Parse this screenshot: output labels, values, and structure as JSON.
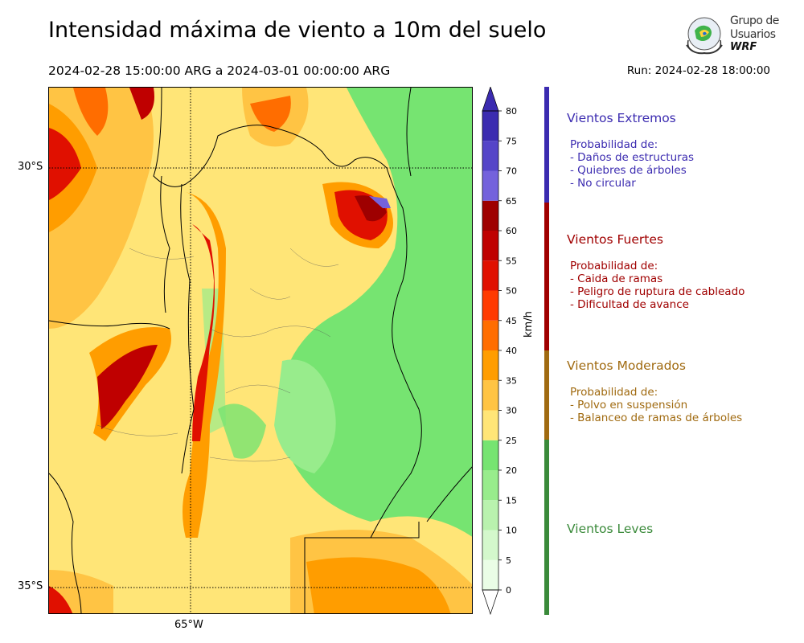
{
  "title": "Intensidad máxima de viento a 10m del suelo",
  "period": "2024-02-28 15:00:00 ARG  a  2024-03-01 00:00:00 ARG",
  "run": "Run: 2024-02-28 18:00:00",
  "logo": {
    "line1": "Grupo de",
    "line2": "Usuarios",
    "line3": "WRF"
  },
  "map": {
    "lat_labels": [
      "30°S",
      "35°S"
    ],
    "lon_labels": [
      "65°W"
    ]
  },
  "colorbar": {
    "unit": "km/h",
    "ticks": [
      "0",
      "5",
      "10",
      "15",
      "20",
      "25",
      "30",
      "35",
      "40",
      "45",
      "50",
      "55",
      "60",
      "65",
      "70",
      "75",
      "80"
    ],
    "colors": [
      "#eafde6",
      "#d4f8cc",
      "#b9f2ae",
      "#98ec8c",
      "#76e471",
      "#ffe577",
      "#ffc444",
      "#ff9d00",
      "#ff6d00",
      "#ff3a00",
      "#e01000",
      "#bf0000",
      "#9e0000",
      "#7462dc",
      "#5545c8",
      "#3b2bb0"
    ]
  },
  "categories": [
    {
      "title": "Vientos Extremos",
      "color": "#3b2bb0",
      "desc_color": "#3b2bb0",
      "lines": [
        "Probabilidad de:",
        "- Daños de estructuras",
        "- Quiebres de árboles",
        "- No circular"
      ]
    },
    {
      "title": "Vientos Fuertes",
      "color": "#a00000",
      "desc_color": "#a00000",
      "lines": [
        "Probabilidad de:",
        "- Caida de ramas",
        "- Peligro de ruptura de cableado",
        "- Dificultad de avance"
      ]
    },
    {
      "title": "Vientos Moderados",
      "color": "#a06a10",
      "desc_color": "#a06a10",
      "lines": [
        "Probabilidad de:",
        "- Polvo en suspensión",
        "- Balanceo de ramas de árboles"
      ]
    },
    {
      "title": "Vientos Leves",
      "color": "#3a8a3a",
      "desc_color": "#3a8a3a",
      "lines": []
    }
  ]
}
